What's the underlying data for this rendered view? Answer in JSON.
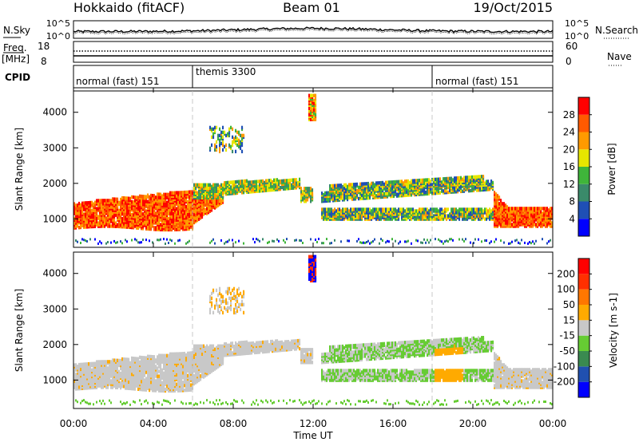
{
  "header": {
    "station": "Hokkaido (fitACF)",
    "beam": "Beam 01",
    "date": "19/Oct/2015"
  },
  "noise_panel": {
    "left_label": "N.Sky",
    "right_label": "N.Search",
    "tick_top": "10^5",
    "tick_bottom": "10^0"
  },
  "freq_panel": {
    "left_label_1": "Freq.",
    "left_label_2": "[MHz]",
    "right_label": "Nave",
    "left_tick_top": "18",
    "left_tick_bottom": "8",
    "right_tick_top": "60",
    "right_tick_bottom": "0"
  },
  "cpid_panel": {
    "label": "CPID",
    "segments": [
      {
        "text": "normal (fast) 151",
        "start_hour": 0
      },
      {
        "text": "themis 3300",
        "start_hour": 6
      },
      {
        "text": "normal (fast) 151",
        "start_hour": 18
      }
    ]
  },
  "chart_data": [
    {
      "type": "heatmap",
      "parameter": "Power",
      "ylabel": "Slant Range [km]",
      "ylim": [
        200,
        4600
      ],
      "yticks": [
        "1000",
        "2000",
        "3000",
        "4000"
      ],
      "colorbar": {
        "label": "Power [dB]",
        "ticks": [
          "4",
          "8",
          "12",
          "16",
          "20",
          "24",
          "28"
        ],
        "colors": [
          "#0000ff",
          "#1f4fb5",
          "#3a8a6a",
          "#3fb53a",
          "#e6e600",
          "#ff9a00",
          "#ff5a00",
          "#ff0000"
        ]
      }
    },
    {
      "type": "heatmap",
      "parameter": "Velocity",
      "ylabel": "Slant Range [km]",
      "ylim": [
        200,
        4600
      ],
      "yticks": [
        "1000",
        "2000",
        "3000",
        "4000"
      ],
      "colorbar": {
        "label": "Velocity [m s-1]",
        "ticks": [
          "200",
          "100",
          "50",
          "15",
          "-15",
          "-50",
          "-100",
          "-200"
        ],
        "colors": [
          "#0000ff",
          "#2050b0",
          "#3a8a50",
          "#66cc33",
          "#c8c8c8",
          "#ffaa00",
          "#ff7700",
          "#ff3000",
          "#ff0000"
        ]
      }
    }
  ],
  "time_axis": {
    "ticks": [
      "00:00",
      "04:00",
      "08:00",
      "12:00",
      "16:00",
      "20:00",
      "00:00"
    ],
    "xlabel": "Time UT"
  }
}
